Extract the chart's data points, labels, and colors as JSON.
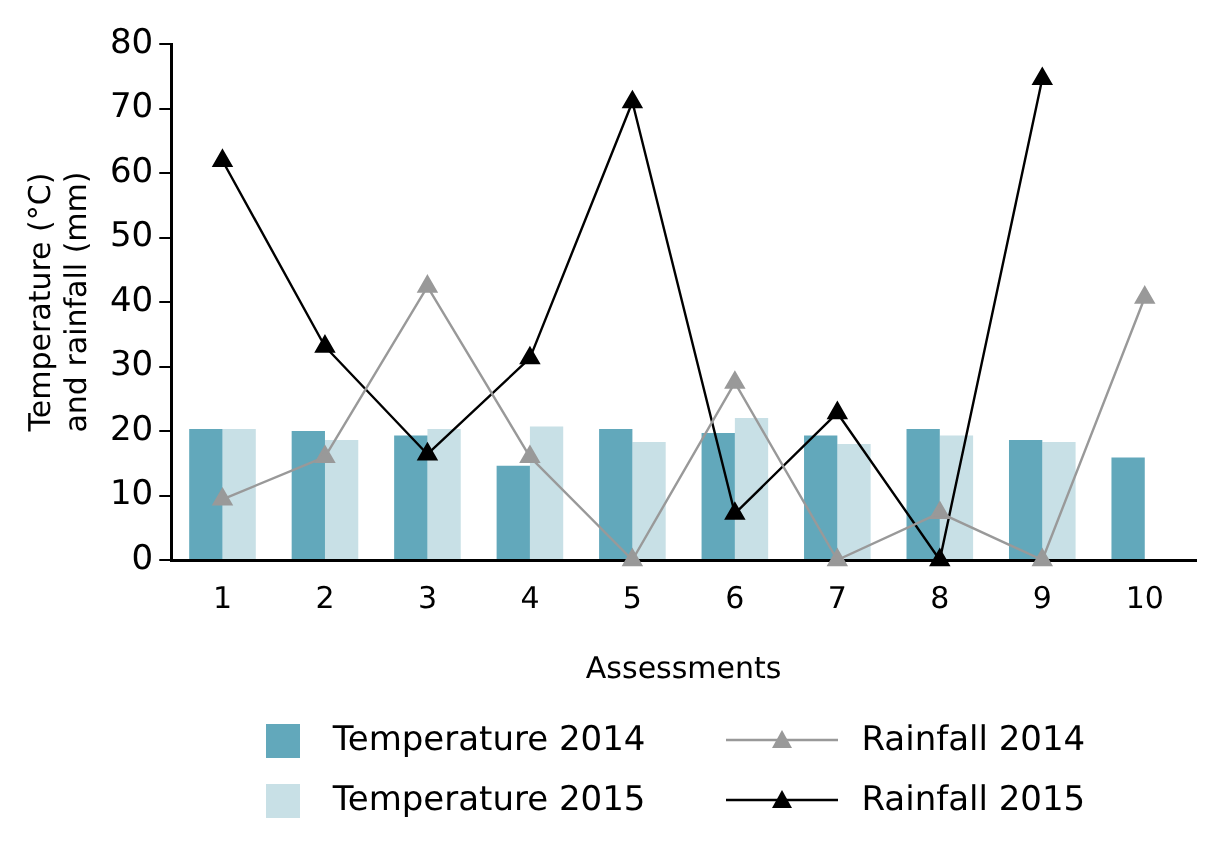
{
  "chart_data": {
    "type": "bar",
    "xlabel": "Assessments",
    "ylabel": "Temperature (°C)\nand rainfall (mm)",
    "categories": [
      "1",
      "2",
      "3",
      "4",
      "5",
      "6",
      "7",
      "8",
      "9",
      "10"
    ],
    "series": [
      {
        "name": "Temperature 2014",
        "color": "#62a8bb",
        "values": [
          20.3,
          20,
          19.3,
          14.6,
          20.3,
          19.7,
          19.3,
          20.3,
          18.6,
          15.9
        ]
      },
      {
        "name": "Temperature 2015",
        "color": "#c8e0e6",
        "values": [
          20.3,
          18.6,
          20.3,
          20.7,
          18.3,
          22,
          18,
          19.3,
          18.3,
          null
        ]
      },
      {
        "name": "Rainfall 2014",
        "type": "line",
        "color": "#999999",
        "marker": "triangle",
        "values": [
          9.4,
          16,
          42.4,
          16,
          0,
          27.5,
          0,
          7.3,
          0,
          40.7
        ]
      },
      {
        "name": "Rainfall 2015",
        "type": "line",
        "color": "#000000",
        "marker": "triangle",
        "values": [
          61.9,
          33.1,
          16.4,
          31.3,
          71,
          7.2,
          22.8,
          0,
          74.6,
          null
        ]
      }
    ],
    "ylim": [
      0,
      80
    ],
    "yticks": [
      0,
      10,
      20,
      30,
      40,
      50,
      60,
      70,
      80
    ],
    "grid": false,
    "legend": "bottom"
  }
}
